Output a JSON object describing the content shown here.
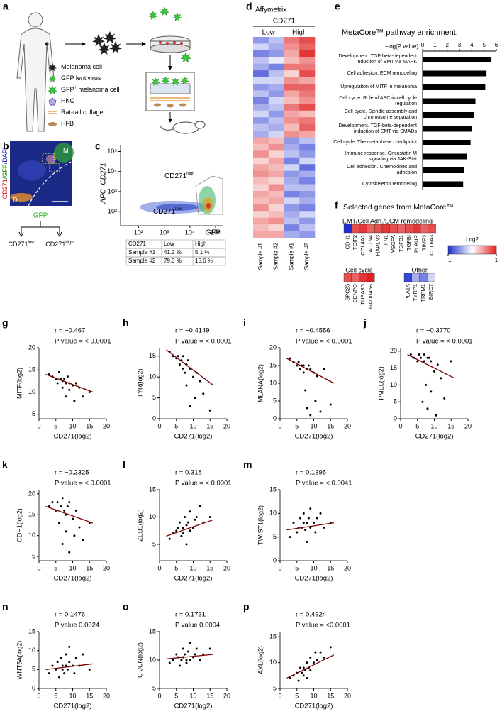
{
  "panel_labels": [
    "a",
    "b",
    "c",
    "d",
    "e",
    "f"
  ],
  "diagram": {
    "legend": [
      [
        "Melanoma cell"
      ],
      [
        "GFP lentivirus"
      ],
      [
        "GFP",
        "+",
        " melanoma cell"
      ],
      [
        "HKC"
      ],
      [
        "Rat-tail collagen"
      ],
      [
        "HFB"
      ]
    ]
  },
  "image_b": {
    "stains": [
      "CD271",
      "/GFP",
      "/DAPI"
    ],
    "region_top": "M",
    "region_bottom": "D",
    "sort_label": "GFP",
    "branches": [
      {
        "base": "CD271",
        "sup": "low"
      },
      {
        "base": "CD271",
        "sup": "high"
      }
    ]
  },
  "chart_data": [
    {
      "type": "flow",
      "x_label": "GFP",
      "y_label": "APC_CD271",
      "log_scale": true,
      "xlim": [
        20,
        200000
      ],
      "ylim": [
        20,
        200000
      ],
      "xticks": [
        {
          "value": 100,
          "label": "10²"
        },
        {
          "value": 1000,
          "label": "10³"
        },
        {
          "value": 10000,
          "label": "10⁴"
        },
        {
          "value": 100000,
          "label": "10⁵"
        }
      ],
      "yticks": [
        {
          "value": 100,
          "label": "10²"
        },
        {
          "value": 1000,
          "label": "10³"
        },
        {
          "value": 10000,
          "label": "10⁴"
        },
        {
          "value": 100000,
          "label": "10⁵"
        }
      ],
      "gate_labels": [
        {
          "base": "CD271",
          "sup": "high"
        },
        {
          "base": "CD271",
          "sup": "low"
        }
      ],
      "table": {
        "header": [
          "CD271",
          "Low",
          "High"
        ],
        "rows": [
          [
            "Sample  #1",
            "41.2 %",
            "5.1 %"
          ],
          [
            "Sample  #2",
            "79.3 %",
            "15.6 %"
          ]
        ]
      }
    },
    {
      "type": "heatmap",
      "title": "Affymetrix",
      "subtitle": "CD271",
      "groups": [
        "Low",
        "High"
      ],
      "columns": [
        "Sample #1",
        "Sample #2",
        "Sample #1",
        "Sample #2"
      ],
      "zlim": [
        -1,
        1
      ],
      "colors": [
        "#2030d0",
        "#ffffff",
        "#e02020"
      ],
      "values": [
        [
          -0.5,
          -0.3,
          0.6,
          0.8
        ],
        [
          -0.2,
          -0.4,
          0.5,
          0.7
        ],
        [
          -0.6,
          -0.5,
          0.4,
          0.9
        ],
        [
          -0.3,
          -0.1,
          0.3,
          0.5
        ],
        [
          -0.4,
          -0.6,
          0.6,
          0.6
        ],
        [
          -0.7,
          -0.3,
          0.2,
          0.8
        ],
        [
          -0.2,
          -0.2,
          0.5,
          0.4
        ],
        [
          -0.5,
          -0.4,
          0.7,
          0.7
        ],
        [
          -0.3,
          -0.5,
          0.4,
          0.6
        ],
        [
          -0.6,
          -0.2,
          0.3,
          0.5
        ],
        [
          -0.4,
          -0.3,
          0.6,
          0.8
        ],
        [
          -0.2,
          -0.5,
          0.4,
          0.3
        ],
        [
          -0.5,
          -0.3,
          0.5,
          0.6
        ],
        [
          -0.3,
          -0.4,
          0.3,
          0.7
        ],
        [
          -0.4,
          -0.2,
          0.5,
          0.4
        ],
        [
          0.4,
          0.3,
          -0.5,
          -0.3
        ],
        [
          0.3,
          0.5,
          -0.4,
          -0.6
        ],
        [
          0.5,
          0.2,
          -0.3,
          -0.5
        ],
        [
          0.2,
          0.4,
          -0.6,
          -0.2
        ],
        [
          0.4,
          0.3,
          -0.2,
          -0.7
        ],
        [
          0.5,
          0.4,
          -0.5,
          -0.4
        ],
        [
          0.3,
          0.2,
          -0.4,
          -0.6
        ],
        [
          0.2,
          0.5,
          -0.3,
          -0.3
        ],
        [
          0.4,
          0.3,
          -0.6,
          -0.5
        ],
        [
          0.3,
          0.4,
          -0.2,
          -0.4
        ],
        [
          0.5,
          0.2,
          -0.5,
          -0.6
        ],
        [
          0.2,
          0.3,
          -0.4,
          -0.2
        ],
        [
          0.4,
          0.5,
          -0.3,
          -0.5
        ],
        [
          0.3,
          0.2,
          -0.6,
          -0.3
        ],
        [
          0.4,
          0.4,
          -0.4,
          -0.5
        ]
      ]
    },
    {
      "type": "hbar",
      "title": "MetaCore™ pathway enrichment:",
      "x_label": "−log(P value)",
      "color": "#000000",
      "xlim": [
        0,
        6
      ],
      "xticks": [
        0,
        1,
        2,
        3,
        4,
        5,
        6
      ],
      "categories": [
        "Development. TGF-beta-dependent induction of EMT via MAPK",
        "Cell adhesion. ECM remodeling",
        "Upregulation of MITF in melanoma",
        "Cell cycle. Role of APC in cell cycle regulation",
        "Cell cycle. Spindle assembly and chromosome separation",
        "Development. TGF-beta-dependent induction of EMT via SMADs",
        "Cell cycle. The metaphase checkpoint",
        "Immune response. Oncostatin M signaling via JAK-Stat",
        "Cell adhesion. Chemokines and adhesion",
        "Cytoskeleton remodeling"
      ],
      "values": [
        5.6,
        5.2,
        5.1,
        4.3,
        4.2,
        4.0,
        3.9,
        3.6,
        3.4,
        3.3
      ]
    },
    {
      "type": "gene-heatmap",
      "title": "Selected genes from MetaCore™",
      "zlim": [
        -1,
        1
      ],
      "colors": [
        "#2030d0",
        "#ffffff",
        "#e02020"
      ],
      "colorbar_label": "Log2",
      "zticks": [
        {
          "value": -1,
          "label": "−1"
        },
        1
      ],
      "groups": [
        {
          "name": "EMT/Cell Adh./ECM remodeling",
          "genes": [
            "CDH1",
            "TGIF2",
            "COL4A1",
            "ACTN4",
            "HAPLN3",
            "FN1",
            "VEGFA",
            "TGFB1",
            "TGFBI",
            "PLAUR",
            "TIMP3",
            "COL6A3"
          ],
          "values": [
            -1,
            0.8,
            0.9,
            0.7,
            0.8,
            0.9,
            0.8,
            0.7,
            0.8,
            0.9,
            0.7,
            0.8
          ]
        },
        {
          "name": "Cell cycle",
          "genes": [
            "SPC25",
            "CENPO",
            "TUBA3D",
            "GADD45B"
          ],
          "values": [
            0.8,
            0.7,
            0.9,
            1
          ]
        },
        {
          "name": "Other",
          "genes": [
            "PLA1A",
            "TYRP1",
            "TRPM1",
            "BIRC7"
          ],
          "values": [
            -0.9,
            -0.4,
            -0.6,
            -0.2
          ]
        }
      ]
    },
    {
      "type": "scatter",
      "panel": "g",
      "r_text": "r = −0.467",
      "p_text": "P value = < 0.0001",
      "x_label": "CD271(log2)",
      "y_label": "MITF(log2)",
      "color": "#000000",
      "fit_color": "#7a0000",
      "xlim": [
        0,
        20
      ],
      "xticks": [
        0,
        5,
        10,
        15,
        20
      ],
      "ylim": [
        4,
        20
      ],
      "yticks": [
        5,
        10,
        15,
        20
      ],
      "x": [
        3,
        4,
        5,
        5.5,
        6,
        6.5,
        7,
        7,
        7.5,
        8,
        8,
        8.5,
        9,
        9,
        10,
        10.5,
        11,
        12,
        13,
        15
      ],
      "values": [
        14,
        13.5,
        13,
        12,
        14.5,
        13,
        12.5,
        11,
        13,
        12,
        9,
        13.5,
        12,
        10.5,
        11.5,
        8,
        12,
        11,
        9,
        10
      ],
      "fit": {
        "x": [
          2,
          16
        ],
        "y": [
          14,
          10
        ]
      }
    },
    {
      "type": "scatter",
      "panel": "h",
      "r_text": "r = −0.4149",
      "p_text": "P value = < 0.0001",
      "x_label": "CD271(log2)",
      "y_label": "TYR(log2)",
      "color": "#000000",
      "fit_color": "#7a0000",
      "xlim": [
        0,
        20
      ],
      "xticks": [
        0,
        5,
        10,
        15,
        20
      ],
      "ylim": [
        0,
        17
      ],
      "yticks": [
        0,
        5,
        10,
        15
      ],
      "x": [
        3,
        4,
        5,
        5.5,
        6,
        6.5,
        7,
        7,
        7.5,
        8,
        8,
        8.5,
        9,
        9,
        10,
        10.5,
        11,
        12,
        13,
        15
      ],
      "values": [
        16,
        15,
        14.5,
        15,
        13,
        14,
        12,
        15,
        11,
        13,
        8,
        14,
        3,
        12,
        10,
        5,
        11,
        9,
        6,
        2
      ],
      "fit": {
        "x": [
          2,
          16
        ],
        "y": [
          16.5,
          8
        ]
      }
    },
    {
      "type": "scatter",
      "panel": "i",
      "r_text": "r = −0.4556",
      "p_text": "P value = < 0.0001",
      "x_label": "CD271(log2)",
      "y_label": "MLANA(log2)",
      "color": "#000000",
      "fit_color": "#7a0000",
      "xlim": [
        0,
        20
      ],
      "xticks": [
        0,
        5,
        10,
        15,
        20
      ],
      "ylim": [
        0,
        20
      ],
      "yticks": [
        0,
        5,
        10,
        15,
        20
      ],
      "x": [
        3,
        4,
        5,
        5.5,
        6,
        6.5,
        7,
        7,
        7.5,
        8,
        8,
        8.5,
        9,
        9,
        10,
        10.5,
        11,
        12,
        13,
        15
      ],
      "values": [
        17,
        16,
        15,
        16,
        14,
        15,
        13,
        15,
        8,
        14,
        3,
        15,
        14,
        1,
        13,
        5,
        12,
        2,
        14,
        4
      ],
      "fit": {
        "x": [
          2,
          16
        ],
        "y": [
          17,
          10
        ]
      }
    },
    {
      "type": "scatter",
      "panel": "j",
      "r_text": "r = −0.3770",
      "p_text": "P value = < 0.0001",
      "x_label": "CD271(log2)",
      "y_label": "PMEL(log2)",
      "color": "#000000",
      "fit_color": "#7a0000",
      "xlim": [
        0,
        20
      ],
      "xticks": [
        0,
        5,
        10,
        15,
        20
      ],
      "ylim": [
        0,
        21
      ],
      "yticks": [
        0,
        5,
        10,
        15,
        20
      ],
      "x": [
        3,
        4,
        5,
        5.5,
        6,
        6.5,
        7,
        7,
        7.5,
        8,
        8,
        8.5,
        9,
        9,
        10,
        10.5,
        11,
        12,
        13,
        15
      ],
      "values": [
        19,
        18,
        17,
        19,
        18,
        5,
        17,
        19,
        10,
        18,
        3,
        18,
        17,
        8,
        14,
        1,
        16,
        12,
        6,
        17
      ],
      "fit": {
        "x": [
          2,
          16
        ],
        "y": [
          19,
          12
        ]
      }
    },
    {
      "type": "scatter",
      "panel": "k",
      "r_text": "r = −0.2325",
      "p_text": "P value = < 0.0001",
      "x_label": "CD271(log2)",
      "y_label": "CDH1(log2)",
      "color": "#000000",
      "fit_color": "#7a0000",
      "xlim": [
        0,
        20
      ],
      "xticks": [
        0,
        5,
        10,
        15,
        20
      ],
      "ylim": [
        4,
        21
      ],
      "yticks": [
        5,
        10,
        15,
        20
      ],
      "x": [
        3,
        4,
        5,
        5.5,
        6,
        6.5,
        7,
        7,
        7.5,
        8,
        8,
        8.5,
        9,
        9,
        10,
        10.5,
        11,
        12,
        13,
        15
      ],
      "values": [
        17,
        18,
        16,
        18,
        13,
        17,
        19,
        8,
        16,
        15,
        11,
        17,
        18,
        6,
        14,
        10,
        16,
        12,
        9,
        13
      ],
      "fit": {
        "x": [
          2,
          16
        ],
        "y": [
          17,
          13
        ]
      }
    },
    {
      "type": "scatter",
      "panel": "l",
      "r_text": "r = 0.318",
      "p_text": "P value = < 0.0001",
      "x_label": "CD271(log2)",
      "y_label": "ZEB1(log2)",
      "color": "#000000",
      "fit_color": "#7a0000",
      "xlim": [
        0,
        20
      ],
      "xticks": [
        0,
        5,
        10,
        15,
        20
      ],
      "ylim": [
        2,
        15
      ],
      "yticks": [
        5,
        10,
        15
      ],
      "x": [
        3,
        4,
        5,
        5.5,
        6,
        6.5,
        7,
        7,
        7.5,
        8,
        8,
        8.5,
        9,
        9,
        10,
        10.5,
        11,
        12,
        13,
        15
      ],
      "values": [
        6,
        7,
        7.5,
        8,
        9,
        6.5,
        7,
        8,
        10,
        8.5,
        5,
        9,
        7.5,
        11,
        8,
        9.5,
        10,
        12,
        9,
        10
      ],
      "fit": {
        "x": [
          2,
          16
        ],
        "y": [
          6.5,
          9.5
        ]
      }
    },
    {
      "type": "scatter",
      "panel": "m",
      "r_text": "r = 0.1395",
      "p_text": "P value = < 0.0041",
      "x_label": "CD271(log2)",
      "y_label": "TWIST1(log2)",
      "color": "#000000",
      "fit_color": "#7a0000",
      "xlim": [
        0,
        20
      ],
      "xticks": [
        0,
        5,
        10,
        15,
        20
      ],
      "ylim": [
        0,
        15
      ],
      "yticks": [
        0,
        5,
        10,
        15
      ],
      "x": [
        3,
        4,
        5,
        5.5,
        6,
        6.5,
        7,
        7,
        7.5,
        8,
        8,
        8.5,
        9,
        9,
        10,
        10.5,
        11,
        12,
        13,
        15
      ],
      "values": [
        5,
        8,
        6,
        7,
        9,
        7,
        8,
        10,
        6.5,
        8,
        4,
        9,
        7,
        11,
        8,
        6,
        9,
        10,
        7,
        8
      ],
      "fit": {
        "x": [
          2,
          16
        ],
        "y": [
          6.5,
          8
        ]
      }
    },
    {
      "type": "scatter",
      "panel": "n",
      "r_text": "r = 0.1476",
      "p_text": "P value  0.0024",
      "x_label": "CD271(log2)",
      "y_label": "WNT5A(log2)",
      "color": "#000000",
      "fit_color": "#7a0000",
      "xlim": [
        0,
        20
      ],
      "xticks": [
        0,
        5,
        10,
        15,
        20
      ],
      "ylim": [
        0,
        15
      ],
      "yticks": [
        0,
        5,
        10,
        15
      ],
      "x": [
        3,
        4,
        5,
        5.5,
        6,
        6.5,
        7,
        7,
        7.5,
        8,
        8,
        8.5,
        9,
        9,
        10,
        10.5,
        11,
        12,
        13,
        15
      ],
      "values": [
        4,
        6,
        5,
        7,
        3,
        8,
        5,
        6,
        4,
        9,
        6,
        5,
        11,
        7,
        6,
        4,
        8,
        6,
        9,
        5
      ],
      "fit": {
        "x": [
          2,
          16
        ],
        "y": [
          5,
          6.5
        ]
      }
    },
    {
      "type": "scatter",
      "panel": "o",
      "r_text": "r = 0.1731",
      "p_text": "P value  0.0004",
      "x_label": "CD271(log2)",
      "y_label": "C-JUN(log2)",
      "color": "#000000",
      "fit_color": "#7a0000",
      "xlim": [
        0,
        20
      ],
      "xticks": [
        0,
        5,
        10,
        15,
        20
      ],
      "ylim": [
        5,
        15
      ],
      "yticks": [
        5,
        10,
        15
      ],
      "x": [
        3,
        4,
        5,
        5.5,
        6,
        6.5,
        7,
        7,
        7.5,
        8,
        8,
        8.5,
        9,
        9,
        10,
        10.5,
        11,
        12,
        13,
        15
      ],
      "values": [
        9.5,
        10,
        11,
        10.5,
        9,
        10,
        12,
        10.5,
        11,
        9.5,
        10,
        11.5,
        10,
        13,
        10.5,
        11,
        12,
        10,
        11,
        12
      ],
      "fit": {
        "x": [
          2,
          16
        ],
        "y": [
          10.2,
          11
        ]
      }
    },
    {
      "type": "scatter",
      "panel": "p",
      "r_text": "r = 0.4924",
      "p_text": "P value = <0.0001",
      "x_label": "CD271(log2)",
      "y_label": "AXL(log2)",
      "color": "#000000",
      "fit_color": "#7a0000",
      "xlim": [
        0,
        20
      ],
      "xticks": [
        0,
        5,
        10,
        15,
        20
      ],
      "ylim": [
        5,
        16
      ],
      "yticks": [
        5,
        10,
        15
      ],
      "x": [
        3,
        4,
        5,
        5.5,
        6,
        6.5,
        7,
        7,
        7.5,
        8,
        8,
        8.5,
        9,
        9,
        10,
        10.5,
        11,
        12,
        13,
        15
      ],
      "values": [
        7,
        7.5,
        8,
        6.5,
        9,
        8,
        7.5,
        9,
        8.5,
        10,
        7,
        9,
        11,
        8.5,
        10,
        12,
        10.5,
        12,
        11,
        13
      ],
      "fit": {
        "x": [
          2,
          16
        ],
        "y": [
          7,
          11.5
        ]
      }
    }
  ]
}
